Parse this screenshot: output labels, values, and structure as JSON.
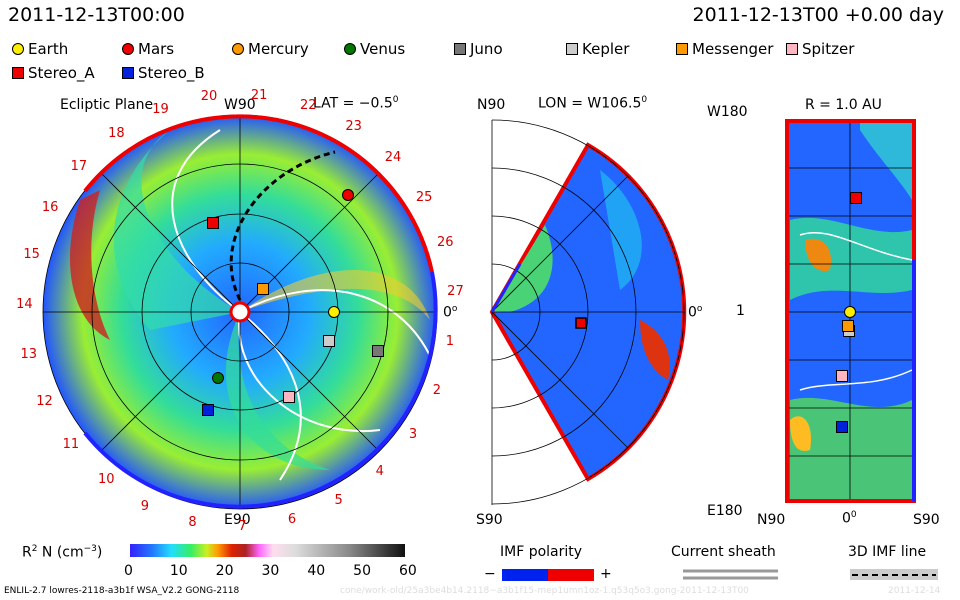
{
  "header": {
    "left": "2011-12-13T00:00",
    "right": "2011-12-13T00 +0.00 day"
  },
  "legend": [
    {
      "name": "Earth",
      "shape": "circle",
      "color": "#ffee00"
    },
    {
      "name": "Mars",
      "shape": "circle",
      "color": "#ee0000"
    },
    {
      "name": "Mercury",
      "shape": "circle",
      "color": "#ff9900"
    },
    {
      "name": "Venus",
      "shape": "circle",
      "color": "#007700"
    },
    {
      "name": "Juno",
      "shape": "square",
      "color": "#777777"
    },
    {
      "name": "Kepler",
      "shape": "square",
      "color": "#cccccc"
    },
    {
      "name": "Messenger",
      "shape": "square",
      "color": "#ff9900"
    },
    {
      "name": "Spitzer",
      "shape": "square",
      "color": "#ffb6c1"
    },
    {
      "name": "Stereo_A",
      "shape": "square",
      "color": "#ee0000"
    },
    {
      "name": "Stereo_B",
      "shape": "square",
      "color": "#0022dd"
    }
  ],
  "panels": {
    "ecliptic": {
      "title": "Ecliptic Plane",
      "top_label": "W90",
      "bottom_label": "E90",
      "right_label": "0",
      "lat_label": "LAT = −0.5",
      "lat_sup": "0"
    },
    "meridional": {
      "top_label": "N90",
      "bottom_label": "S90",
      "right_label": "0",
      "lon_label": "LON = W106.5",
      "lon_sup": "0"
    },
    "radial": {
      "title": "R = 1.0 AU",
      "top_left": "W180",
      "bottom_left": "E180",
      "mid_left": "1",
      "bottom_ticks": [
        "N90",
        "0",
        "S90"
      ],
      "sup0": "0"
    }
  },
  "carrington_ticks": [
    "1",
    "2",
    "3",
    "4",
    "5",
    "6",
    "7",
    "8",
    "9",
    "10",
    "11",
    "12",
    "13",
    "14",
    "15",
    "16",
    "17",
    "18",
    "19",
    "20",
    "21",
    "22",
    "23",
    "24",
    "25",
    "26",
    "27"
  ],
  "colorbar": {
    "label": "R",
    "sup": "2",
    "label_rest": " N (cm",
    "unit_sup": "−3",
    "label_end": ")",
    "ticks": [
      "0",
      "10",
      "20",
      "30",
      "40",
      "50",
      "60"
    ]
  },
  "imf": {
    "title": "IMF polarity",
    "minus": "−",
    "plus": "+"
  },
  "current_sheath": {
    "title": "Current sheath"
  },
  "imf3d": {
    "title": "3D IMF line"
  },
  "footer": {
    "left": "ENLIL-2.7 lowres-2118-a3b1f WSA_V2.2 GONG-2118",
    "mid": "cone/work-old/25a3be4b14.2118~a3b1f15-mep1umn1oz-1.q53q5o3.gong-2011-12-13T00",
    "right": "2011-12-14"
  }
}
